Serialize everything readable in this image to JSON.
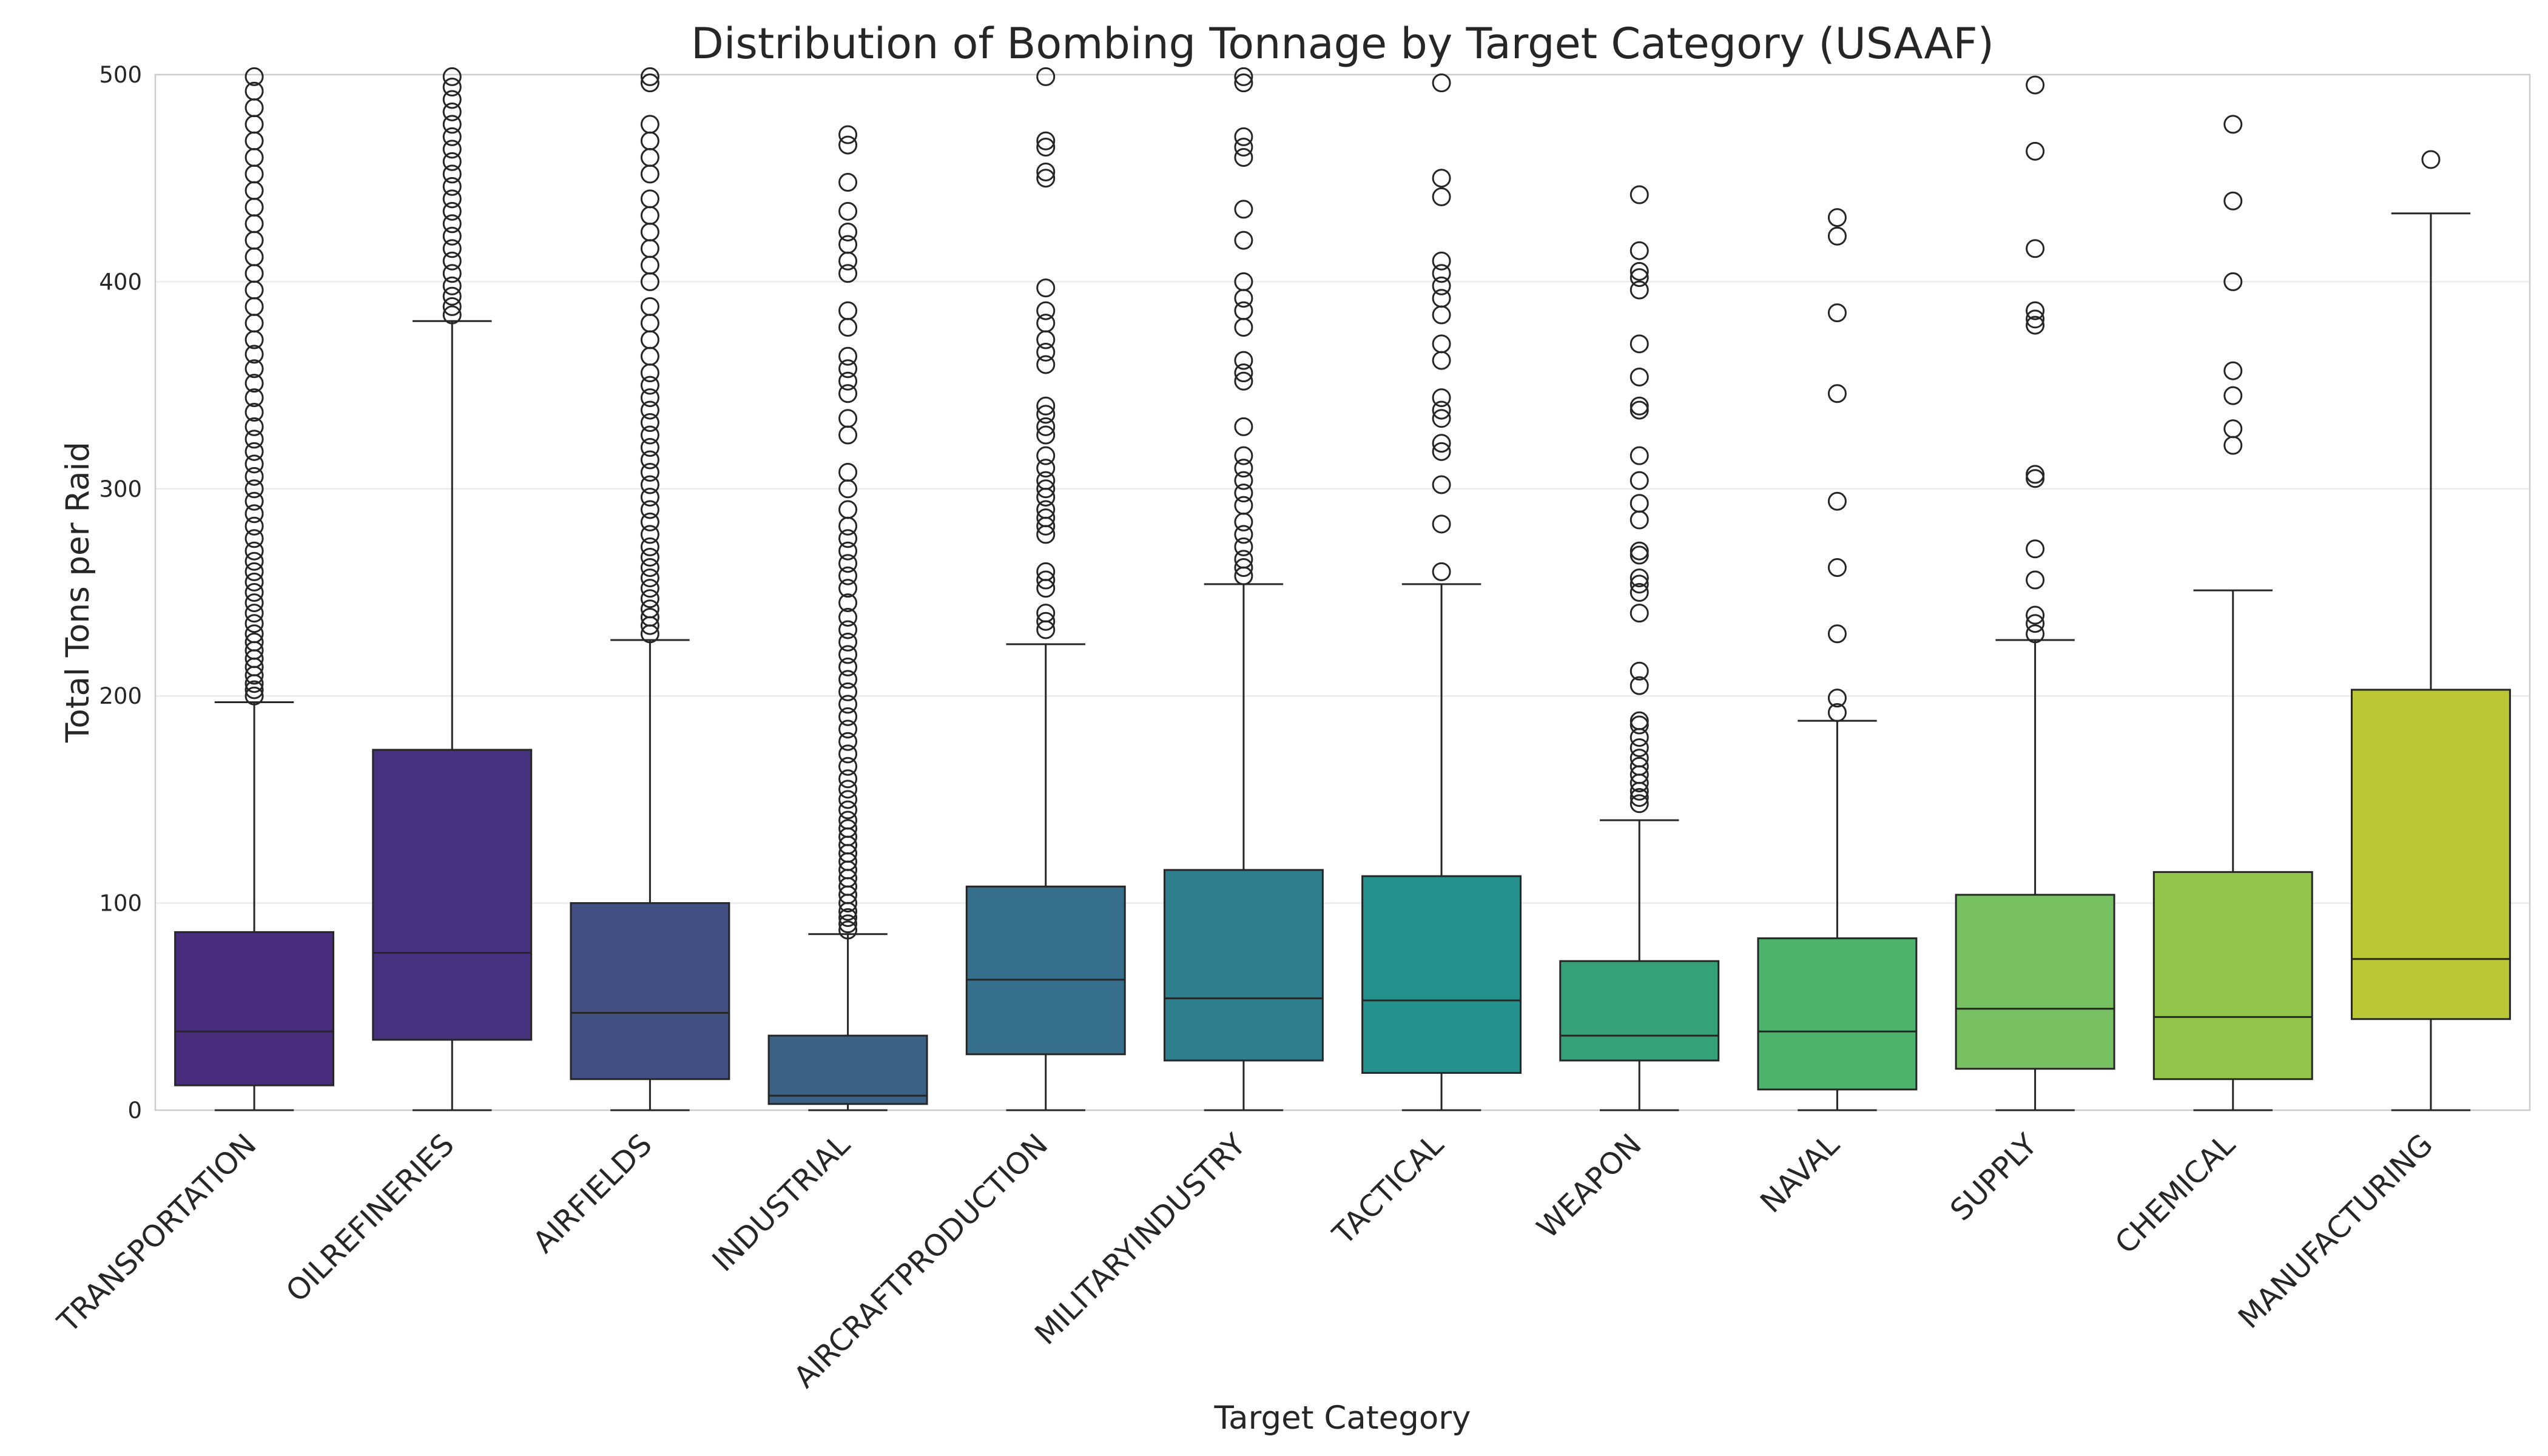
{
  "chart_data": {
    "type": "box",
    "title": "Distribution of Bombing Tonnage by Target Category (USAAF)",
    "xlabel": "Target Category",
    "ylabel": "Total Tons per Raid",
    "ylim": [
      0,
      500
    ],
    "yticks": [
      0,
      100,
      200,
      300,
      400,
      500
    ],
    "grid": "horizontal",
    "categories": [
      "TRANSPORTATION",
      "OILREFINERIES",
      "AIRFIELDS",
      "INDUSTRIAL",
      "AIRCRAFTPRODUCTION",
      "MILITARYINDUSTRY",
      "TACTICAL",
      "WEAPON",
      "NAVAL",
      "SUPPLY",
      "CHEMICAL",
      "MANUFACTURING"
    ],
    "colors": [
      "#472D7B",
      "#46327E",
      "#414F82",
      "#3B6285",
      "#366F8B",
      "#2E7F8E",
      "#25918C",
      "#35A07A",
      "#4DB26C",
      "#78C162",
      "#93C54B",
      "#BBC734"
    ],
    "boxes": [
      {
        "category": "TRANSPORTATION",
        "whisker_low": 0,
        "q1": 12,
        "median": 38,
        "q3": 86,
        "whisker_high": 197,
        "outliers": [
          200,
          203,
          206,
          210,
          214,
          218,
          222,
          226,
          230,
          235,
          240,
          245,
          250,
          255,
          260,
          265,
          270,
          276,
          282,
          288,
          294,
          300,
          306,
          312,
          318,
          324,
          330,
          337,
          344,
          351,
          358,
          365,
          372,
          380,
          388,
          396,
          404,
          412,
          420,
          428,
          436,
          444,
          452,
          460,
          468,
          476,
          484,
          492,
          499
        ]
      },
      {
        "category": "OILREFINERIES",
        "whisker_low": 0,
        "q1": 34,
        "median": 76,
        "q3": 174,
        "whisker_high": 381,
        "outliers": [
          384,
          388,
          393,
          398,
          404,
          410,
          416,
          422,
          428,
          434,
          440,
          446,
          452,
          458,
          464,
          470,
          476,
          482,
          488,
          494,
          499
        ]
      },
      {
        "category": "AIRFIELDS",
        "whisker_low": 0,
        "q1": 15,
        "median": 47,
        "q3": 100,
        "whisker_high": 227,
        "outliers": [
          230,
          234,
          238,
          242,
          247,
          252,
          257,
          262,
          267,
          272,
          278,
          284,
          290,
          296,
          302,
          308,
          314,
          320,
          326,
          332,
          338,
          344,
          350,
          356,
          364,
          372,
          380,
          388,
          400,
          408,
          416,
          424,
          432,
          440,
          452,
          460,
          468,
          476,
          496,
          499
        ]
      },
      {
        "category": "INDUSTRIAL",
        "whisker_low": 0,
        "q1": 3,
        "median": 7,
        "q3": 36,
        "whisker_high": 85,
        "outliers": [
          87,
          90,
          93,
          96,
          100,
          104,
          108,
          112,
          116,
          120,
          124,
          128,
          132,
          136,
          140,
          145,
          150,
          155,
          160,
          166,
          172,
          178,
          184,
          190,
          196,
          202,
          208,
          214,
          220,
          226,
          232,
          238,
          245,
          252,
          258,
          264,
          270,
          276,
          282,
          290,
          300,
          308,
          326,
          334,
          346,
          352,
          358,
          364,
          378,
          386,
          404,
          410,
          418,
          424,
          434,
          448,
          466,
          471
        ]
      },
      {
        "category": "AIRCRAFTPRODUCTION",
        "whisker_low": 0,
        "q1": 27,
        "median": 63,
        "q3": 108,
        "whisker_high": 225,
        "outliers": [
          232,
          236,
          240,
          252,
          256,
          260,
          278,
          282,
          286,
          290,
          296,
          300,
          304,
          310,
          316,
          326,
          330,
          336,
          340,
          360,
          366,
          372,
          380,
          386,
          397,
          450,
          453,
          465,
          468,
          499
        ]
      },
      {
        "category": "MILITARYINDUSTRY",
        "whisker_low": 0,
        "q1": 24,
        "median": 54,
        "q3": 116,
        "whisker_high": 254,
        "outliers": [
          258,
          262,
          266,
          272,
          278,
          284,
          292,
          298,
          304,
          310,
          316,
          330,
          352,
          356,
          362,
          378,
          386,
          392,
          400,
          420,
          435,
          460,
          465,
          470,
          496,
          499
        ]
      },
      {
        "category": "TACTICAL",
        "whisker_low": 0,
        "q1": 18,
        "median": 53,
        "q3": 113,
        "whisker_high": 254,
        "outliers": [
          260,
          283,
          302,
          318,
          322,
          334,
          338,
          344,
          362,
          370,
          384,
          392,
          398,
          404,
          410,
          441,
          450,
          496
        ]
      },
      {
        "category": "WEAPON",
        "whisker_low": 0,
        "q1": 24,
        "median": 36,
        "q3": 72,
        "whisker_high": 140,
        "outliers": [
          148,
          151,
          154,
          158,
          162,
          166,
          170,
          175,
          180,
          186,
          188,
          205,
          212,
          240,
          250,
          254,
          257,
          268,
          270,
          285,
          293,
          304,
          316,
          338,
          340,
          354,
          370,
          396,
          402,
          405,
          415,
          442
        ]
      },
      {
        "category": "NAVAL",
        "whisker_low": 0,
        "q1": 10,
        "median": 38,
        "q3": 83,
        "whisker_high": 188,
        "outliers": [
          192,
          199,
          230,
          262,
          294,
          346,
          385,
          422,
          431
        ]
      },
      {
        "category": "SUPPLY",
        "whisker_low": 0,
        "q1": 20,
        "median": 49,
        "q3": 104,
        "whisker_high": 227,
        "outliers": [
          230,
          235,
          239,
          256,
          271,
          305,
          307,
          379,
          382,
          386,
          416,
          463,
          495
        ]
      },
      {
        "category": "CHEMICAL",
        "whisker_low": 0,
        "q1": 15,
        "median": 45,
        "q3": 115,
        "whisker_high": 251,
        "outliers": [
          321,
          329,
          345,
          357,
          400,
          439,
          476
        ]
      },
      {
        "category": "MANUFACTURING",
        "whisker_low": 0,
        "q1": 44,
        "median": 73,
        "q3": 203,
        "whisker_high": 433,
        "outliers": [
          459
        ]
      }
    ]
  }
}
